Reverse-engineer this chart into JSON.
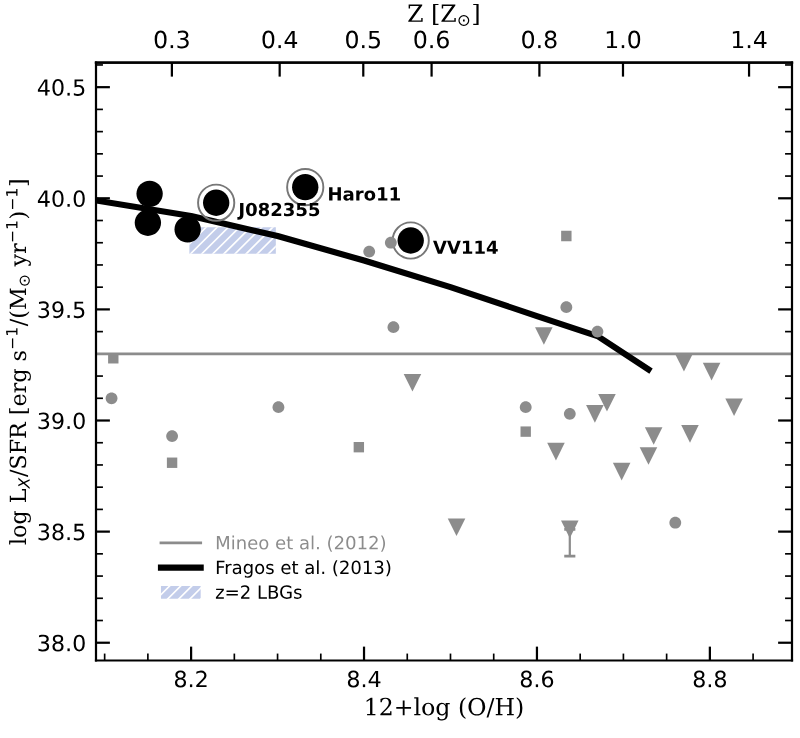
{
  "chart_data": {
    "type": "scatter",
    "xlabel": "12+log (O/H)",
    "ylabel": "log L$_{X}$/SFR [erg s$^{−1}$/(M$_{⊙}$ yr$^{−1}$)$^{−1}$]",
    "x2label": "Z [Z$_{⊙}$]",
    "xlim": [
      8.09,
      8.895
    ],
    "ylim": [
      37.92,
      40.61
    ],
    "xticks": [
      8.2,
      8.4,
      8.6,
      8.8
    ],
    "yticks": [
      {
        "value": 38.0,
        "label": "38.0"
      },
      {
        "value": 38.5,
        "label": "38.5"
      },
      {
        "value": 39.0,
        "label": "39.0"
      },
      {
        "value": 39.5,
        "label": "39.5"
      },
      {
        "value": 40.0,
        "label": "40.0"
      },
      {
        "value": 40.5,
        "label": "40.5"
      }
    ],
    "x2lim": [
      0.245,
      1.57
    ],
    "log": "x2",
    "x2ticks": [
      0.3,
      0.4,
      0.5,
      0.6,
      0.8,
      {
        "value": 1.0,
        "label": "1.0"
      },
      1.4
    ],
    "grid": false,
    "legend": "bottom left",
    "ref_lines": [
      {
        "axis": "y",
        "value": 39.3,
        "label": "Mineo et al. (2012)",
        "color": "#8c8c8c"
      }
    ],
    "series": [
      {
        "type": "line",
        "name": "Fragos et al. (2013)",
        "color": "#000000",
        "marker": "none",
        "x": [
          8.09,
          8.2,
          8.3,
          8.4,
          8.5,
          8.6,
          8.67,
          8.729
        ],
        "values": [
          39.99,
          39.92,
          39.83,
          39.72,
          39.6,
          39.47,
          39.38,
          39.23
        ]
      },
      {
        "type": "area",
        "name": "z=2 LBGs",
        "color": "#c3cdea",
        "x": [
          8.198,
          8.298
        ],
        "lower": [
          39.75,
          39.75
        ],
        "upper": [
          39.87,
          39.87
        ],
        "values": [
          null,
          null
        ]
      },
      {
        "color": "#000000",
        "marker": "circle",
        "x": [
          8.152,
          8.15,
          8.196,
          8.229,
          8.332,
          8.454
        ],
        "values": [
          40.02,
          39.89,
          39.86,
          39.98,
          40.05,
          39.81
        ]
      },
      {
        "color": "#8c8c8c",
        "marker": "circle",
        "x": [
          8.406,
          8.431,
          8.434,
          8.634,
          8.67,
          8.108,
          8.178,
          8.301,
          8.587,
          8.638,
          8.76
        ],
        "values": [
          39.76,
          39.8,
          39.42,
          39.51,
          39.4,
          39.1,
          38.93,
          39.06,
          39.06,
          39.03,
          38.54
        ]
      },
      {
        "color": "#8c8c8c",
        "marker": "square",
        "x": [
          8.11,
          8.634,
          8.178,
          8.394,
          8.587
        ],
        "values": [
          39.28,
          39.83,
          38.81,
          38.88,
          38.95
        ]
      },
      {
        "color": "#8c8c8c",
        "marker": "triangle",
        "x": [
          8.608,
          8.77,
          8.802,
          8.456,
          8.507,
          8.638,
          8.622,
          8.667,
          8.681,
          8.698,
          8.729,
          8.735,
          8.777,
          8.828
        ],
        "values": [
          39.38,
          39.26,
          39.22,
          39.17,
          38.52,
          38.51,
          38.86,
          39.03,
          39.08,
          38.77,
          38.84,
          38.93,
          38.94,
          39.06
        ],
        "errors": [
          null,
          null,
          null,
          null,
          null,
          [
            38.39,
            38.51
          ],
          null,
          null,
          null,
          null,
          null,
          null,
          null,
          null
        ]
      }
    ],
    "annotations": [
      {
        "text": "J082355",
        "x": 8.229,
        "y": 39.98
      },
      {
        "text": "Haro11",
        "x": 8.332,
        "y": 40.05
      },
      {
        "text": "VV114",
        "x": 8.454,
        "y": 39.81
      }
    ]
  }
}
